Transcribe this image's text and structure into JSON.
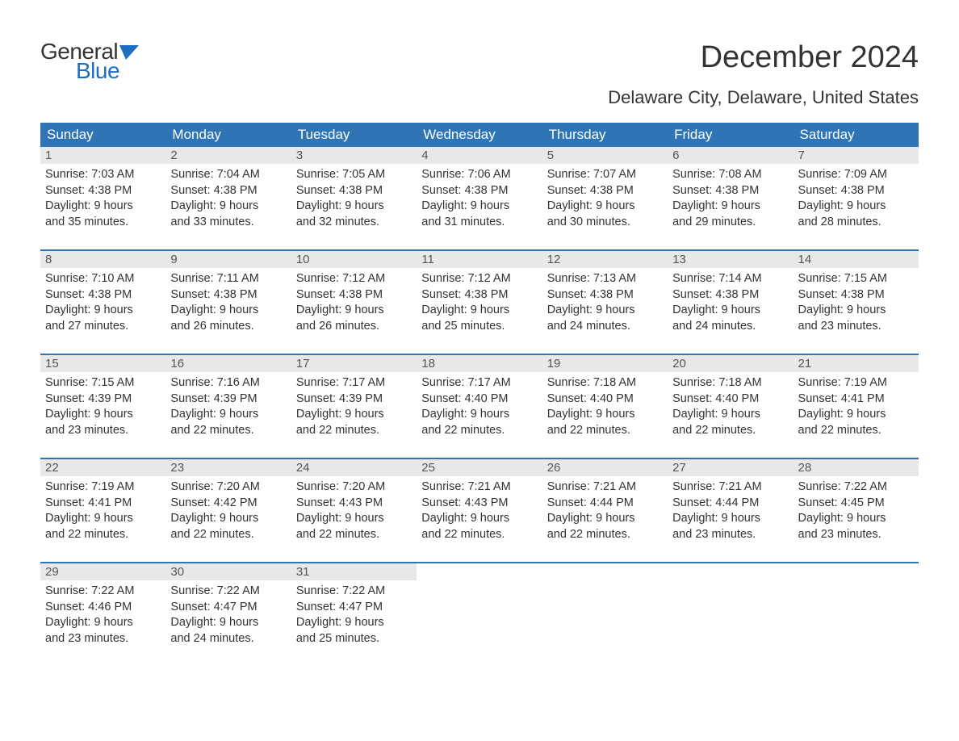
{
  "brand": {
    "word1": "General",
    "word2": "Blue",
    "word1_color": "#333333",
    "word2_color": "#1b6ec2"
  },
  "title": "December 2024",
  "subtitle": "Delaware City, Delaware, United States",
  "colors": {
    "header_bg": "#2f75b5",
    "header_text": "#ffffff",
    "daynum_bg": "#e8e8e8",
    "row_sep": "#2f75b5",
    "body_text": "#333333",
    "background": "#ffffff"
  },
  "fonts": {
    "title_size": 38,
    "subtitle_size": 22,
    "header_size": 17,
    "body_size": 14.5,
    "logo_size": 28
  },
  "day_headers": [
    "Sunday",
    "Monday",
    "Tuesday",
    "Wednesday",
    "Thursday",
    "Friday",
    "Saturday"
  ],
  "weeks": [
    [
      {
        "n": "1",
        "sunrise": "Sunrise: 7:03 AM",
        "sunset": "Sunset: 4:38 PM",
        "d1": "Daylight: 9 hours",
        "d2": "and 35 minutes."
      },
      {
        "n": "2",
        "sunrise": "Sunrise: 7:04 AM",
        "sunset": "Sunset: 4:38 PM",
        "d1": "Daylight: 9 hours",
        "d2": "and 33 minutes."
      },
      {
        "n": "3",
        "sunrise": "Sunrise: 7:05 AM",
        "sunset": "Sunset: 4:38 PM",
        "d1": "Daylight: 9 hours",
        "d2": "and 32 minutes."
      },
      {
        "n": "4",
        "sunrise": "Sunrise: 7:06 AM",
        "sunset": "Sunset: 4:38 PM",
        "d1": "Daylight: 9 hours",
        "d2": "and 31 minutes."
      },
      {
        "n": "5",
        "sunrise": "Sunrise: 7:07 AM",
        "sunset": "Sunset: 4:38 PM",
        "d1": "Daylight: 9 hours",
        "d2": "and 30 minutes."
      },
      {
        "n": "6",
        "sunrise": "Sunrise: 7:08 AM",
        "sunset": "Sunset: 4:38 PM",
        "d1": "Daylight: 9 hours",
        "d2": "and 29 minutes."
      },
      {
        "n": "7",
        "sunrise": "Sunrise: 7:09 AM",
        "sunset": "Sunset: 4:38 PM",
        "d1": "Daylight: 9 hours",
        "d2": "and 28 minutes."
      }
    ],
    [
      {
        "n": "8",
        "sunrise": "Sunrise: 7:10 AM",
        "sunset": "Sunset: 4:38 PM",
        "d1": "Daylight: 9 hours",
        "d2": "and 27 minutes."
      },
      {
        "n": "9",
        "sunrise": "Sunrise: 7:11 AM",
        "sunset": "Sunset: 4:38 PM",
        "d1": "Daylight: 9 hours",
        "d2": "and 26 minutes."
      },
      {
        "n": "10",
        "sunrise": "Sunrise: 7:12 AM",
        "sunset": "Sunset: 4:38 PM",
        "d1": "Daylight: 9 hours",
        "d2": "and 26 minutes."
      },
      {
        "n": "11",
        "sunrise": "Sunrise: 7:12 AM",
        "sunset": "Sunset: 4:38 PM",
        "d1": "Daylight: 9 hours",
        "d2": "and 25 minutes."
      },
      {
        "n": "12",
        "sunrise": "Sunrise: 7:13 AM",
        "sunset": "Sunset: 4:38 PM",
        "d1": "Daylight: 9 hours",
        "d2": "and 24 minutes."
      },
      {
        "n": "13",
        "sunrise": "Sunrise: 7:14 AM",
        "sunset": "Sunset: 4:38 PM",
        "d1": "Daylight: 9 hours",
        "d2": "and 24 minutes."
      },
      {
        "n": "14",
        "sunrise": "Sunrise: 7:15 AM",
        "sunset": "Sunset: 4:38 PM",
        "d1": "Daylight: 9 hours",
        "d2": "and 23 minutes."
      }
    ],
    [
      {
        "n": "15",
        "sunrise": "Sunrise: 7:15 AM",
        "sunset": "Sunset: 4:39 PM",
        "d1": "Daylight: 9 hours",
        "d2": "and 23 minutes."
      },
      {
        "n": "16",
        "sunrise": "Sunrise: 7:16 AM",
        "sunset": "Sunset: 4:39 PM",
        "d1": "Daylight: 9 hours",
        "d2": "and 22 minutes."
      },
      {
        "n": "17",
        "sunrise": "Sunrise: 7:17 AM",
        "sunset": "Sunset: 4:39 PM",
        "d1": "Daylight: 9 hours",
        "d2": "and 22 minutes."
      },
      {
        "n": "18",
        "sunrise": "Sunrise: 7:17 AM",
        "sunset": "Sunset: 4:40 PM",
        "d1": "Daylight: 9 hours",
        "d2": "and 22 minutes."
      },
      {
        "n": "19",
        "sunrise": "Sunrise: 7:18 AM",
        "sunset": "Sunset: 4:40 PM",
        "d1": "Daylight: 9 hours",
        "d2": "and 22 minutes."
      },
      {
        "n": "20",
        "sunrise": "Sunrise: 7:18 AM",
        "sunset": "Sunset: 4:40 PM",
        "d1": "Daylight: 9 hours",
        "d2": "and 22 minutes."
      },
      {
        "n": "21",
        "sunrise": "Sunrise: 7:19 AM",
        "sunset": "Sunset: 4:41 PM",
        "d1": "Daylight: 9 hours",
        "d2": "and 22 minutes."
      }
    ],
    [
      {
        "n": "22",
        "sunrise": "Sunrise: 7:19 AM",
        "sunset": "Sunset: 4:41 PM",
        "d1": "Daylight: 9 hours",
        "d2": "and 22 minutes."
      },
      {
        "n": "23",
        "sunrise": "Sunrise: 7:20 AM",
        "sunset": "Sunset: 4:42 PM",
        "d1": "Daylight: 9 hours",
        "d2": "and 22 minutes."
      },
      {
        "n": "24",
        "sunrise": "Sunrise: 7:20 AM",
        "sunset": "Sunset: 4:43 PM",
        "d1": "Daylight: 9 hours",
        "d2": "and 22 minutes."
      },
      {
        "n": "25",
        "sunrise": "Sunrise: 7:21 AM",
        "sunset": "Sunset: 4:43 PM",
        "d1": "Daylight: 9 hours",
        "d2": "and 22 minutes."
      },
      {
        "n": "26",
        "sunrise": "Sunrise: 7:21 AM",
        "sunset": "Sunset: 4:44 PM",
        "d1": "Daylight: 9 hours",
        "d2": "and 22 minutes."
      },
      {
        "n": "27",
        "sunrise": "Sunrise: 7:21 AM",
        "sunset": "Sunset: 4:44 PM",
        "d1": "Daylight: 9 hours",
        "d2": "and 23 minutes."
      },
      {
        "n": "28",
        "sunrise": "Sunrise: 7:22 AM",
        "sunset": "Sunset: 4:45 PM",
        "d1": "Daylight: 9 hours",
        "d2": "and 23 minutes."
      }
    ],
    [
      {
        "n": "29",
        "sunrise": "Sunrise: 7:22 AM",
        "sunset": "Sunset: 4:46 PM",
        "d1": "Daylight: 9 hours",
        "d2": "and 23 minutes."
      },
      {
        "n": "30",
        "sunrise": "Sunrise: 7:22 AM",
        "sunset": "Sunset: 4:47 PM",
        "d1": "Daylight: 9 hours",
        "d2": "and 24 minutes."
      },
      {
        "n": "31",
        "sunrise": "Sunrise: 7:22 AM",
        "sunset": "Sunset: 4:47 PM",
        "d1": "Daylight: 9 hours",
        "d2": "and 25 minutes."
      },
      null,
      null,
      null,
      null
    ]
  ]
}
